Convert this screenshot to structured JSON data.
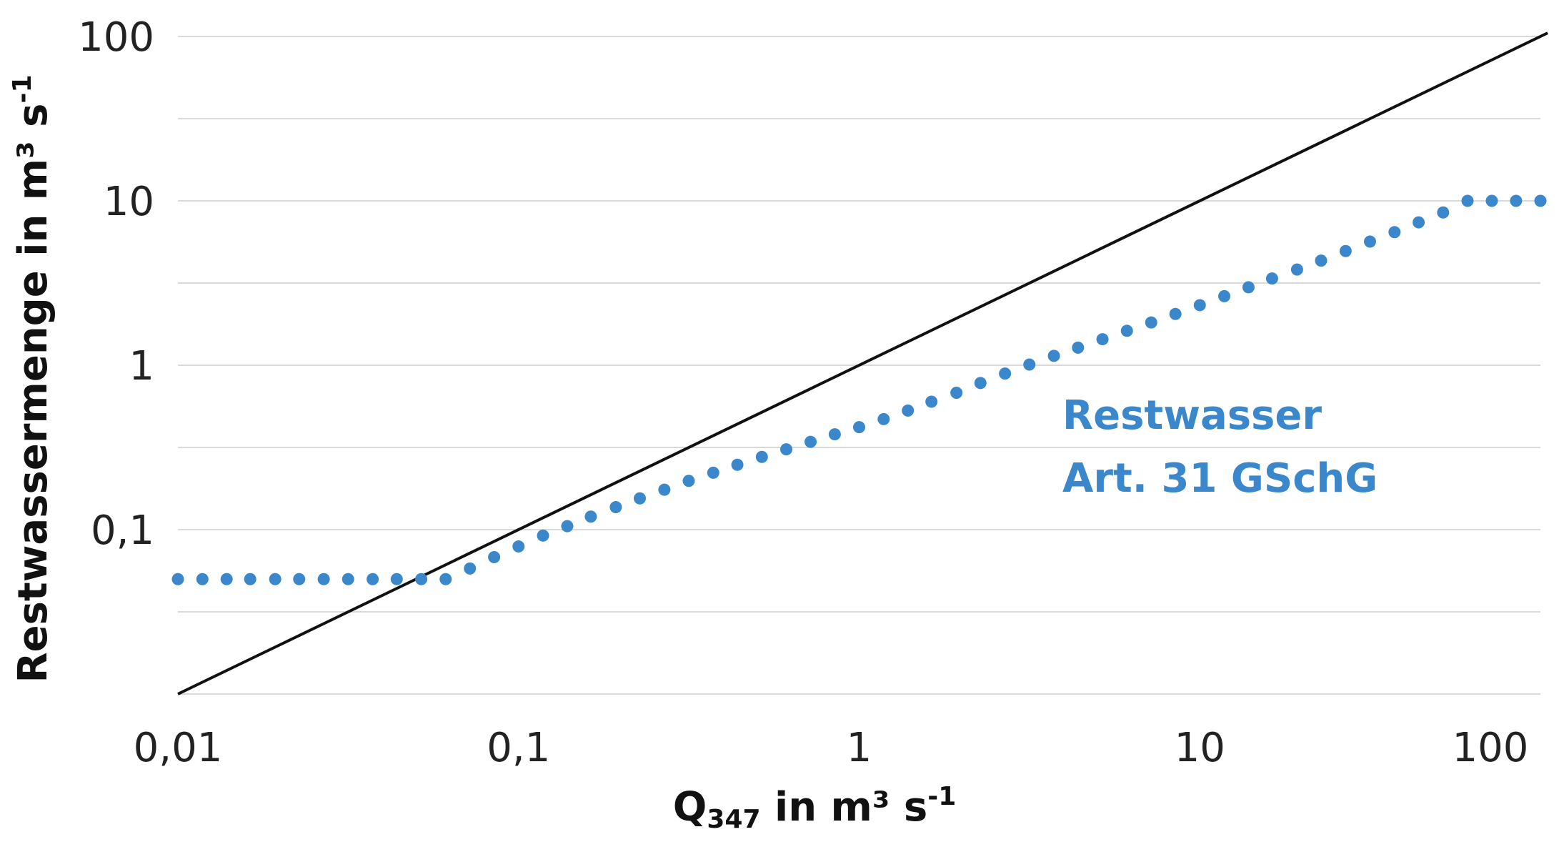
{
  "chart_data": {
    "type": "scatter",
    "x_scale": "log",
    "y_scale": "log",
    "xlim": [
      0.01,
      100
    ],
    "ylim": [
      0.01,
      100
    ],
    "x_ticks": [
      {
        "value": 0.01,
        "label": "0,01"
      },
      {
        "value": 0.1,
        "label": "0,1"
      },
      {
        "value": 1,
        "label": "1"
      },
      {
        "value": 10,
        "label": "10"
      },
      {
        "value": 100,
        "label": "100"
      }
    ],
    "y_ticks": [
      {
        "value": 0.1,
        "label": "0,1"
      },
      {
        "value": 1,
        "label": "1"
      },
      {
        "value": 10,
        "label": "10"
      },
      {
        "value": 100,
        "label": "100"
      }
    ],
    "xlabel": {
      "main": "Q",
      "sub": "347",
      "rest": " in m³ s",
      "sup": "-1"
    },
    "ylabel": {
      "main": "Restwassermenge in m³ s",
      "sup": "-1"
    },
    "grid": "horizontal",
    "series": [
      {
        "kind": "line",
        "color": "#111111",
        "x": [
          0.01,
          105
        ],
        "y": [
          0.01,
          105
        ]
      },
      {
        "name": "Restwasser Art. 31 GSchG",
        "kind": "dots",
        "color": "#3a87cc",
        "x": [
          0.01,
          0.0118,
          0.0139,
          0.0163,
          0.0193,
          0.0227,
          0.0268,
          0.0316,
          0.0373,
          0.0439,
          0.0518,
          0.0611,
          0.072,
          0.0848,
          0.1,
          0.118,
          0.139,
          0.163,
          0.193,
          0.227,
          0.268,
          0.316,
          0.373,
          0.439,
          0.518,
          0.611,
          0.72,
          0.848,
          1.0,
          1.18,
          1.39,
          1.63,
          1.93,
          2.27,
          2.68,
          3.16,
          3.73,
          4.39,
          5.18,
          6.11,
          7.2,
          8.48,
          10.0,
          11.8,
          13.9,
          16.3,
          19.3,
          22.7,
          26.8,
          31.6,
          37.3,
          43.9,
          51.8,
          61.1,
          72.0,
          84.8,
          100
        ],
        "y": [
          0.05,
          0.05,
          0.05,
          0.05,
          0.05,
          0.05,
          0.05,
          0.05,
          0.05,
          0.05,
          0.05,
          0.05,
          0.058,
          0.068,
          0.079,
          0.092,
          0.105,
          0.12,
          0.137,
          0.155,
          0.175,
          0.198,
          0.222,
          0.248,
          0.277,
          0.308,
          0.342,
          0.38,
          0.42,
          0.47,
          0.53,
          0.6,
          0.68,
          0.78,
          0.89,
          1.01,
          1.14,
          1.28,
          1.44,
          1.62,
          1.82,
          2.05,
          2.32,
          2.63,
          2.98,
          3.37,
          3.82,
          4.33,
          4.95,
          5.65,
          6.45,
          7.4,
          8.5,
          10,
          10,
          10,
          10
        ]
      }
    ],
    "series_label_lines": [
      "Restwasser",
      "Art. 31 GSchG"
    ]
  }
}
